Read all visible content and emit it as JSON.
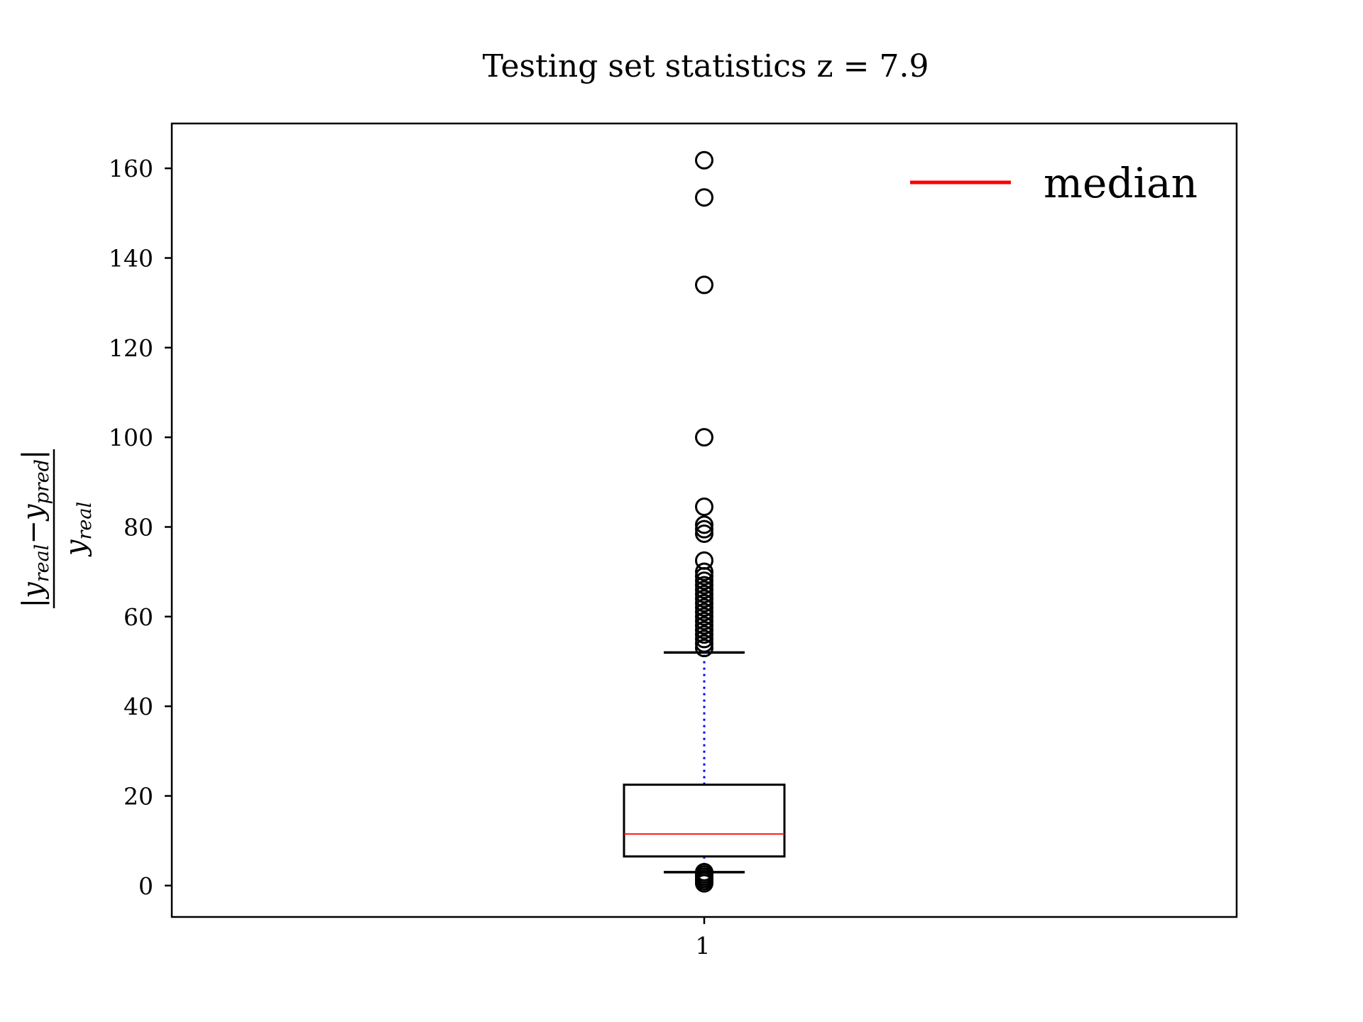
{
  "chart_data": {
    "type": "box",
    "title": "Testing set statistics z = 7.9",
    "ylabel": {
      "numerator": "|y_real − y_pred|",
      "num_abs_open": "|",
      "num_y1": "y",
      "num_sub1": "real",
      "num_minus": "−",
      "num_y2": "y",
      "num_sub2": "pred",
      "num_abs_close": "|",
      "den_y": "y",
      "den_sub": "real"
    },
    "categories": [
      "1"
    ],
    "ylim": [
      -7,
      170
    ],
    "yticks": [
      0,
      20,
      40,
      60,
      80,
      100,
      120,
      140,
      160
    ],
    "ytick_labels": [
      "0",
      "20",
      "40",
      "60",
      "80",
      "100",
      "120",
      "140",
      "160"
    ],
    "legend": {
      "position": "top-right",
      "entries": [
        {
          "label": "median",
          "color": "#ff0000"
        }
      ]
    },
    "grid": false,
    "colors": {
      "median": "#ff0000",
      "whisker": "#0000ff",
      "box": "#000000"
    },
    "boxes": [
      {
        "category": "1",
        "whisker_low": 3.0,
        "q1": 6.5,
        "median": 11.5,
        "q3": 22.5,
        "whisker_high": 52.0,
        "outliers": [
          0.5,
          1.0,
          1.5,
          2.0,
          2.5,
          3.0,
          53.0,
          54.0,
          55.0,
          56.0,
          57.0,
          58.0,
          59.0,
          60.0,
          61.0,
          62.0,
          63.0,
          64.0,
          65.0,
          66.0,
          67.0,
          68.0,
          69.0,
          70.0,
          72.5,
          78.5,
          79.5,
          80.5,
          84.5,
          100.0,
          134.0,
          153.5,
          161.8
        ]
      }
    ]
  }
}
